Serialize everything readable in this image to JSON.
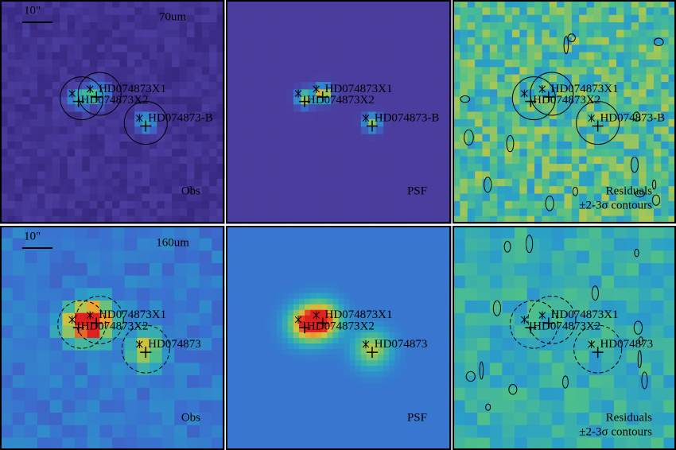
{
  "panels": [
    {
      "band": "70um",
      "scale_bar": "10\"",
      "label": "Obs",
      "sources": [
        "HD074873X1",
        "HD074873X2",
        "HD074873-B"
      ]
    },
    {
      "label": "PSF",
      "sources": [
        "HD074873X1",
        "HD074873X2",
        "HD074873-B"
      ]
    },
    {
      "label": "Residuals",
      "note": "±2-3σ contours",
      "sources": [
        "HD074873X1",
        "HD074873X2",
        "HD074873-B"
      ]
    },
    {
      "band": "160um",
      "scale_bar": "10\"",
      "label": "Obs",
      "sources": [
        "HD074873X1",
        "HD074873X2",
        "HD074873"
      ]
    },
    {
      "label": "PSF",
      "sources": [
        "HD074873X1",
        "HD074873X2",
        "HD074873"
      ]
    },
    {
      "label": "Residuals",
      "note": "±2-3σ contours",
      "sources": [
        "HD074873X1",
        "HD074873X2",
        "HD074873"
      ]
    }
  ]
}
